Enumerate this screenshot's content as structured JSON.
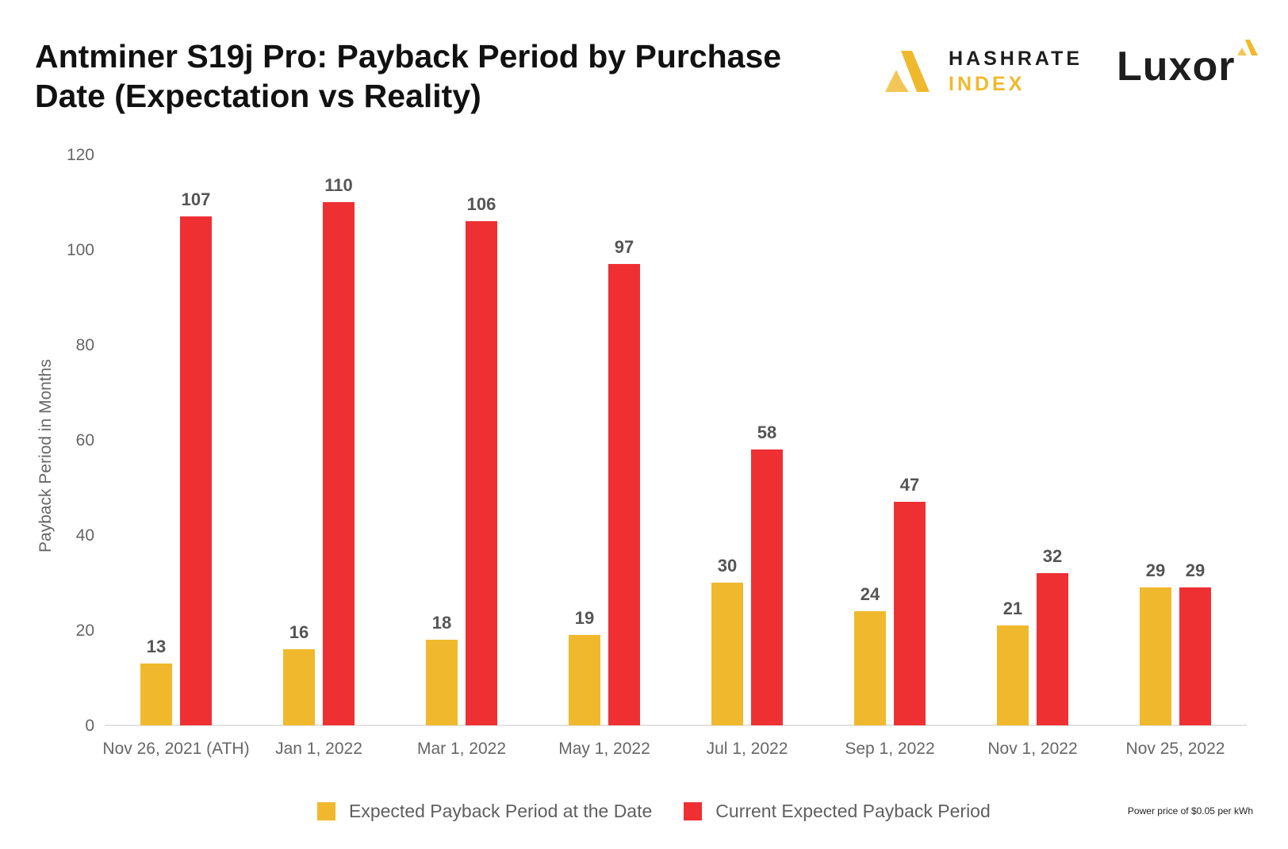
{
  "title": "Antminer S19j Pro: Payback Period by Purchase Date (Expectation vs Reality)",
  "logos": {
    "hashrate_line1": "HASHRATE",
    "hashrate_line2": "INDEX",
    "luxor": "Luxor"
  },
  "footnote": "Power price of $0.05 per kWh",
  "colors": {
    "expected": "#f0b92d",
    "current": "#ee3033",
    "axis_text": "#666666",
    "label_text": "#555555"
  },
  "chart_data": {
    "type": "bar",
    "title": "Antminer S19j Pro: Payback Period by Purchase Date (Expectation vs Reality)",
    "xlabel": "",
    "ylabel": "Payback Period in Months",
    "ylim": [
      0,
      120
    ],
    "yticks": [
      0,
      20,
      40,
      60,
      80,
      100,
      120
    ],
    "grid": false,
    "legend_position": "bottom",
    "categories": [
      "Nov 26, 2021 (ATH)",
      "Jan 1, 2022",
      "Mar 1, 2022",
      "May 1, 2022",
      "Jul 1, 2022",
      "Sep 1, 2022",
      "Nov 1, 2022",
      "Nov 25, 2022"
    ],
    "series": [
      {
        "name": "Expected Payback Period at the Date",
        "color": "#f0b92d",
        "values": [
          13,
          16,
          18,
          19,
          30,
          24,
          21,
          29
        ]
      },
      {
        "name": "Current Expected Payback Period",
        "color": "#ee3033",
        "values": [
          107,
          110,
          106,
          97,
          58,
          47,
          32,
          29
        ]
      }
    ]
  }
}
